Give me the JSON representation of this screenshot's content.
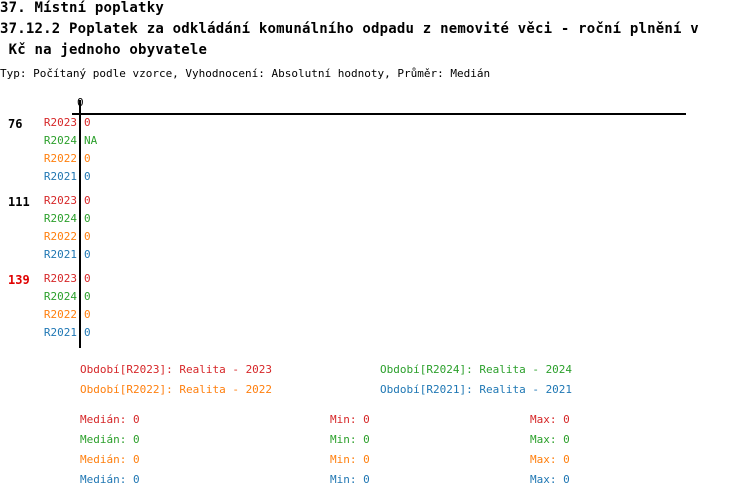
{
  "header": {
    "line1": "37. Místní poplatky",
    "line2": "37.12.2 Poplatek za odkládání komunálního odpadu z nemovité věci - roční plnění v",
    "line3": " Kč na jednoho obyvatele",
    "subtitle": "Typ: Počítaný podle vzorce, Vyhodnocení: Absolutní hodnoty, Průměr: Medián"
  },
  "colors": {
    "R2023": "#d62728",
    "R2024": "#2ca02c",
    "R2022": "#ff7f0e",
    "R2021": "#1f77b4",
    "highlight": "#e00000"
  },
  "chart_data": {
    "type": "bar",
    "orientation": "horizontal",
    "x_tick_labels": [
      "0"
    ],
    "categories": [
      "76",
      "111",
      "139"
    ],
    "highlighted_category": "139",
    "series": [
      {
        "name": "R2023",
        "values": [
          0,
          0,
          0
        ],
        "labels": [
          "0",
          "0",
          "0"
        ]
      },
      {
        "name": "R2024",
        "values": [
          null,
          0,
          0
        ],
        "labels": [
          "NA",
          "0",
          "0"
        ]
      },
      {
        "name": "R2022",
        "values": [
          0,
          0,
          0
        ],
        "labels": [
          "0",
          "0",
          "0"
        ]
      },
      {
        "name": "R2021",
        "values": [
          0,
          0,
          0
        ],
        "labels": [
          "0",
          "0",
          "0"
        ]
      }
    ]
  },
  "legend": [
    {
      "series": "R2023",
      "text": "Období[R2023]: Realita - 2023"
    },
    {
      "series": "R2024",
      "text": "Období[R2024]: Realita - 2024"
    },
    {
      "series": "R2022",
      "text": "Období[R2022]: Realita - 2022"
    },
    {
      "series": "R2021",
      "text": "Období[R2021]: Realita - 2021"
    }
  ],
  "stats": [
    {
      "series": "R2023",
      "median": "Medián: 0",
      "min": "Min: 0",
      "max": "Max: 0"
    },
    {
      "series": "R2024",
      "median": "Medián: 0",
      "min": "Min: 0",
      "max": "Max: 0"
    },
    {
      "series": "R2022",
      "median": "Medián: 0",
      "min": "Min: 0",
      "max": "Max: 0"
    },
    {
      "series": "R2021",
      "median": "Medián: 0",
      "min": "Min: 0",
      "max": "Max: 0"
    }
  ]
}
